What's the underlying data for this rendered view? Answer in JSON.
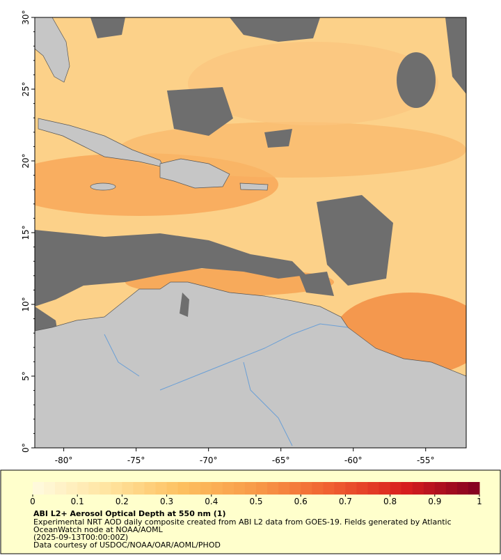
{
  "map": {
    "xlim": [
      -82,
      -52.2
    ],
    "ylim": [
      0,
      30
    ],
    "xticks": [
      {
        "value": -80,
        "label": "-80°"
      },
      {
        "value": -75,
        "label": "-75°"
      },
      {
        "value": -70,
        "label": "-70°"
      },
      {
        "value": -65,
        "label": "-65°"
      },
      {
        "value": -60,
        "label": "-60°"
      },
      {
        "value": -55,
        "label": "-55°"
      }
    ],
    "yticks": [
      {
        "value": 0,
        "label": "0°"
      },
      {
        "value": 5,
        "label": "5°"
      },
      {
        "value": 10,
        "label": "10°"
      },
      {
        "value": 15,
        "label": "15°"
      },
      {
        "value": 20,
        "label": "20°"
      },
      {
        "value": 25,
        "label": "25°"
      },
      {
        "value": 30,
        "label": "30°"
      }
    ]
  },
  "colorbar": {
    "range": [
      0,
      1
    ],
    "ticks": [
      0,
      0.1,
      0.2,
      0.3,
      0.4,
      0.5,
      0.6,
      0.7,
      0.8,
      0.9,
      1
    ],
    "colors": [
      "#fffbe0",
      "#ffe4a0",
      "#fdc060",
      "#f89a48",
      "#f06030",
      "#d81e1e",
      "#800020"
    ]
  },
  "caption": {
    "title": "ABI L2+ Aerosol Optical Depth at 550 nm (1)",
    "lines": [
      "Experimental NRT AOD daily composite created from ABI L2 data from GOES-19. Fields generated by Atlantic",
      "OceanWatch node at NOAA/AOML",
      "(2025-09-13T00:00:00Z)",
      "Data courtesy of USDOC/NOAA/OAR/AOML/PHOD"
    ]
  }
}
